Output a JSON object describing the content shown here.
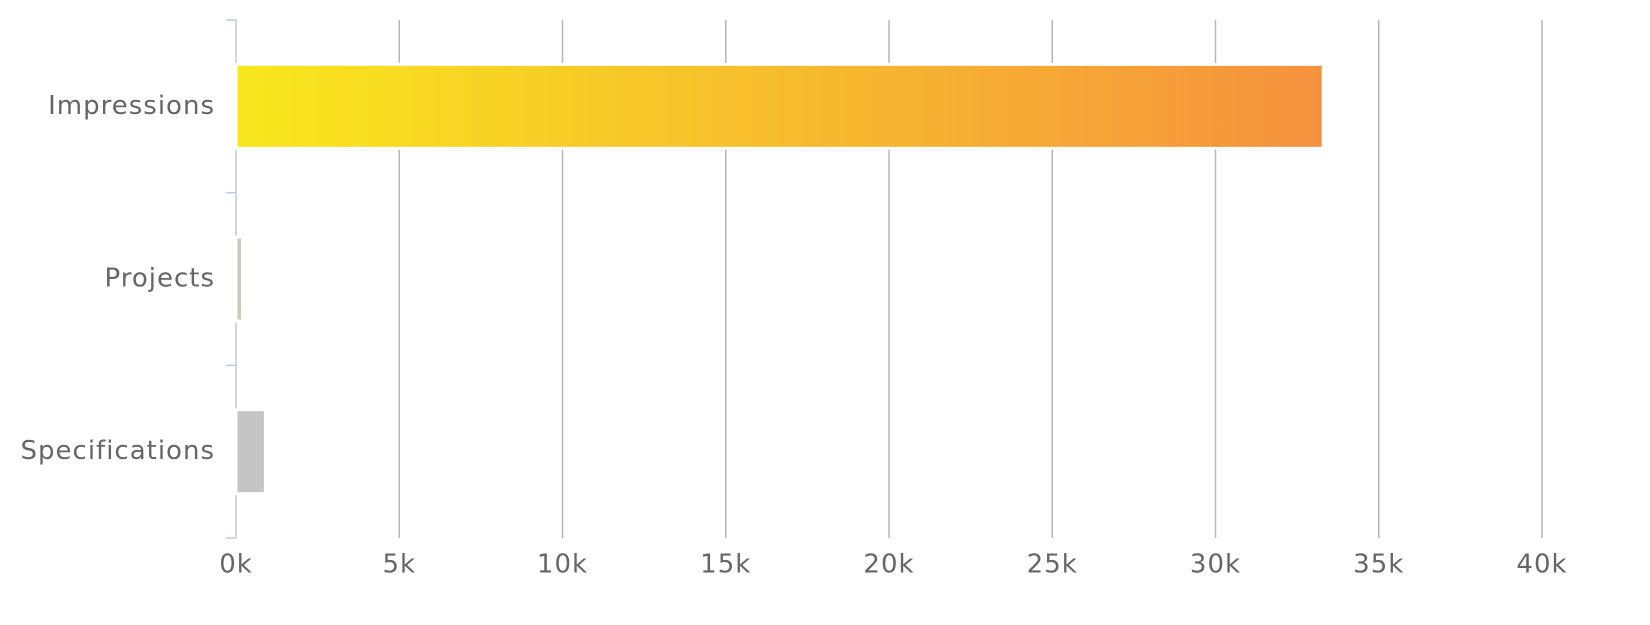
{
  "chart_data": {
    "type": "hbar",
    "categories": [
      "Impressions",
      "Projects",
      "Specifications"
    ],
    "values": [
      33300,
      200,
      900
    ],
    "colors": [
      [
        "#f8e71c",
        "#f5923e"
      ],
      "#c9cbb8",
      "#c4c4c4"
    ],
    "xlim": [
      0,
      40000
    ],
    "xticks": [
      {
        "value": 0,
        "label": "0k"
      },
      {
        "value": 5000,
        "label": "5k"
      },
      {
        "value": 10000,
        "label": "10k"
      },
      {
        "value": 15000,
        "label": "15k"
      },
      {
        "value": 20000,
        "label": "20k"
      },
      {
        "value": 25000,
        "label": "25k"
      },
      {
        "value": 30000,
        "label": "30k"
      },
      {
        "value": 35000,
        "label": "35k"
      },
      {
        "value": 40000,
        "label": "40k"
      }
    ],
    "grid": true
  }
}
